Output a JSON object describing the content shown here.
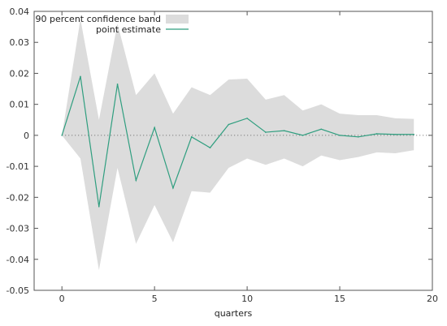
{
  "chart_data": {
    "type": "line",
    "title": "",
    "xlabel": "quarters",
    "ylabel": "",
    "xlim": [
      -1.5,
      20
    ],
    "ylim": [
      -0.05,
      0.04
    ],
    "x_ticks": [
      0,
      5,
      10,
      15,
      20
    ],
    "y_ticks": [
      -0.05,
      -0.04,
      -0.03,
      -0.02,
      -0.01,
      0,
      0.01,
      0.02,
      0.03,
      0.04
    ],
    "x_tick_labels": [
      "0",
      "5",
      "10",
      "15",
      "20"
    ],
    "y_tick_labels": [
      "-0.05",
      "-0.04",
      "-0.03",
      "-0.02",
      "-0.01",
      "0",
      "0.01",
      "0.02",
      "0.03",
      "0.04"
    ],
    "legend_position": "top-left",
    "zero_line": "dotted",
    "x": [
      0,
      1,
      2,
      3,
      4,
      5,
      6,
      7,
      8,
      9,
      10,
      11,
      12,
      13,
      14,
      15,
      16,
      17,
      18,
      19
    ],
    "series": [
      {
        "name": "point estimate",
        "kind": "line",
        "color": "#2f9e7f",
        "values": [
          0,
          0.019,
          -0.023,
          0.0165,
          -0.0145,
          0.0025,
          -0.017,
          -0.0005,
          -0.004,
          0.0035,
          0.0055,
          0.001,
          0.0015,
          0.0,
          0.002,
          0.0,
          -0.0005,
          0.0005,
          0.0003,
          0.0003
        ]
      },
      {
        "name": "90 percent confidence band",
        "kind": "band",
        "color": "#dcdcdc",
        "upper": [
          0,
          0.0375,
          0.005,
          0.036,
          0.013,
          0.02,
          0.007,
          0.0155,
          0.013,
          0.018,
          0.0183,
          0.0115,
          0.013,
          0.008,
          0.01,
          0.007,
          0.0065,
          0.0065,
          0.0055,
          0.0053
        ],
        "lower": [
          0,
          -0.0075,
          -0.0435,
          -0.0105,
          -0.035,
          -0.0225,
          -0.0345,
          -0.018,
          -0.0185,
          -0.0105,
          -0.0075,
          -0.0095,
          -0.0075,
          -0.01,
          -0.0065,
          -0.008,
          -0.007,
          -0.0055,
          -0.0058,
          -0.0048
        ]
      }
    ]
  }
}
